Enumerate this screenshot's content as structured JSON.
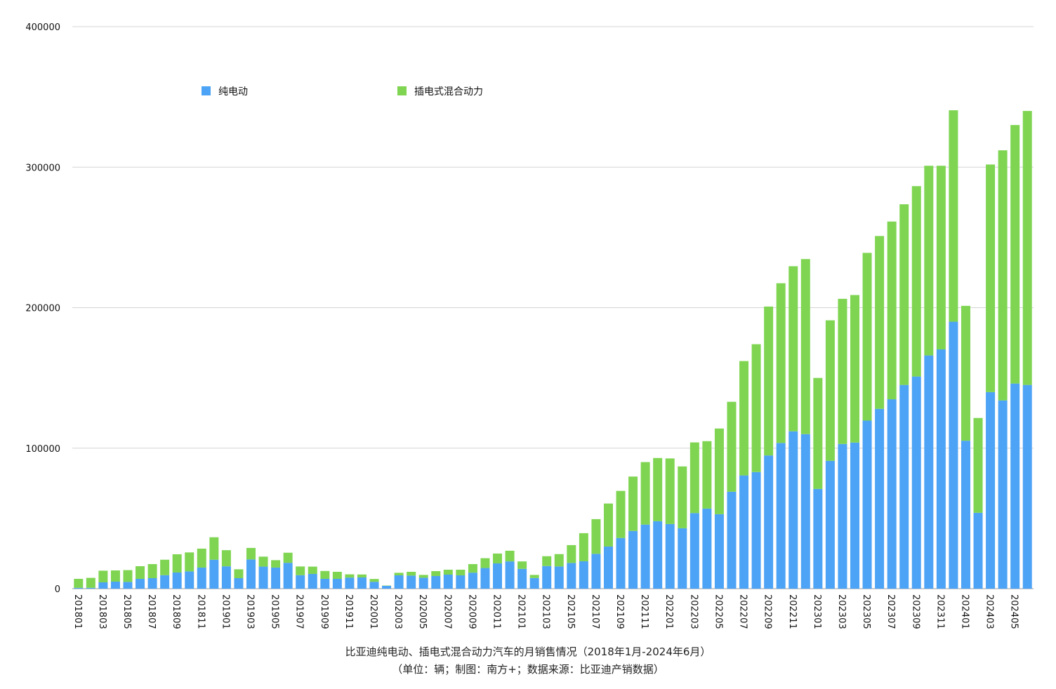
{
  "chart_data": {
    "type": "bar",
    "stacked": true,
    "title": "比亚迪纯电动、插电式混合动力汽车的月销售情况（2018年1月-2024年6月）",
    "subtitle": "（单位：辆；制图：南方+；数据来源：比亚迪产销数据）",
    "ylim": [
      0,
      400000
    ],
    "yticks": [
      "0",
      "100000",
      "200000",
      "300000",
      "400000"
    ],
    "grid": true,
    "legend_position": "top",
    "categories": [
      "201801",
      "201802",
      "201803",
      "201804",
      "201805",
      "201806",
      "201807",
      "201808",
      "201809",
      "201810",
      "201811",
      "201812",
      "201901",
      "201902",
      "201903",
      "201904",
      "201905",
      "201906",
      "201907",
      "201908",
      "201909",
      "201910",
      "201911",
      "201912",
      "202001",
      "202002",
      "202003",
      "202004",
      "202005",
      "202006",
      "202007",
      "202008",
      "202009",
      "202010",
      "202011",
      "202012",
      "202101",
      "202102",
      "202103",
      "202104",
      "202105",
      "202106",
      "202107",
      "202108",
      "202109",
      "202110",
      "202111",
      "202112",
      "202201",
      "202202",
      "202203",
      "202204",
      "202205",
      "202206",
      "202207",
      "202208",
      "202209",
      "202210",
      "202211",
      "202212",
      "202301",
      "202302",
      "202303",
      "202304",
      "202305",
      "202306",
      "202307",
      "202308",
      "202309",
      "202310",
      "202311",
      "202312",
      "202401",
      "202402",
      "202403",
      "202404",
      "202405",
      "202406"
    ],
    "tick_labels": [
      "201801",
      "",
      "201803",
      "",
      "201805",
      "",
      "201807",
      "",
      "201809",
      "",
      "201811",
      "",
      "201901",
      "",
      "201903",
      "",
      "201905",
      "",
      "201907",
      "",
      "201909",
      "",
      "201911",
      "",
      "202001",
      "",
      "202003",
      "",
      "202005",
      "",
      "202007",
      "",
      "202009",
      "",
      "202011",
      "",
      "202101",
      "",
      "202103",
      "",
      "202105",
      "",
      "202107",
      "",
      "202109",
      "",
      "202111",
      "",
      "202201",
      "",
      "202203",
      "",
      "202205",
      "",
      "202207",
      "",
      "202209",
      "",
      "202211",
      "",
      "202301",
      "",
      "202303",
      "",
      "202305",
      "",
      "202307",
      "",
      "202309",
      "",
      "202311",
      "",
      "202401",
      "",
      "202403",
      "",
      "202405",
      ""
    ],
    "series": [
      {
        "name": "纯电动",
        "color": "#4da3f5",
        "values": [
          600,
          600,
          4500,
          5000,
          4800,
          7000,
          7500,
          9600,
          11500,
          12300,
          15000,
          20600,
          15900,
          7500,
          20800,
          15700,
          15000,
          18400,
          9600,
          10500,
          7000,
          7000,
          7900,
          8000,
          4900,
          2000,
          9500,
          9300,
          7800,
          9000,
          10000,
          9500,
          11400,
          14700,
          18000,
          19400,
          14100,
          7600,
          16100,
          15800,
          18300,
          19500,
          24800,
          30000,
          36100,
          41100,
          45600,
          48000,
          46000,
          43000,
          53800,
          57000,
          53000,
          69000,
          80600,
          83000,
          94800,
          103700,
          112000,
          110000,
          71000,
          91000,
          103000,
          104000,
          119600,
          128000,
          134800,
          145000,
          151000,
          166000,
          170300,
          190000,
          105300,
          54000,
          139900,
          134000,
          146000,
          145000
        ],
        "legend_label": "纯电动"
      },
      {
        "name": "插电式混合动力",
        "color": "#7fd552",
        "values": [
          6400,
          7100,
          8300,
          8000,
          8400,
          9000,
          10000,
          11000,
          13000,
          13500,
          13500,
          16000,
          11500,
          6300,
          8200,
          7100,
          5300,
          7200,
          6200,
          5200,
          5600,
          5000,
          2300,
          2100,
          2000,
          200,
          1800,
          2700,
          2000,
          3500,
          3500,
          4000,
          6100,
          7000,
          7000,
          7600,
          5300,
          2200,
          7000,
          8800,
          12700,
          20000,
          24700,
          30600,
          33500,
          38700,
          44500,
          45000,
          46700,
          44000,
          50300,
          48000,
          61000,
          64000,
          81400,
          91000,
          106000,
          113700,
          117500,
          124600,
          79000,
          100000,
          103300,
          105000,
          119400,
          123000,
          126500,
          128600,
          135500,
          135000,
          130700,
          150500,
          96000,
          67500,
          162000,
          178000,
          184000,
          195000
        ],
        "legend_label": "插电式混合动力"
      }
    ]
  }
}
